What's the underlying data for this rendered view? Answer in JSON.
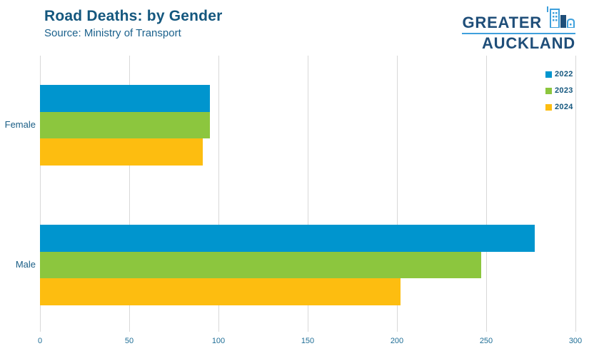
{
  "header": {
    "title": "Road Deaths: by Gender",
    "subtitle": "Source: Ministry of Transport"
  },
  "logo": {
    "line1": "GREATER",
    "line2": "AUCKLAND",
    "icon": "skyline-icon"
  },
  "colors": {
    "series_2022": "#0095CE",
    "series_2023": "#8CC63E",
    "series_2024": "#FDBD10",
    "title_text": "#14577E",
    "axis_text": "#1F6E96",
    "category_text": "#1A5E86",
    "gridline": "#D8D8D8",
    "logo_dark": "#1F4E79",
    "logo_light": "#3EA0DC"
  },
  "chart_data": {
    "type": "bar",
    "orientation": "horizontal",
    "title": "Road Deaths: by Gender",
    "subtitle": "Source: Ministry of Transport",
    "categories": [
      "Female",
      "Male"
    ],
    "series": [
      {
        "name": "2022",
        "color": "#0095CE",
        "values": [
          95,
          277
        ]
      },
      {
        "name": "2023",
        "color": "#8CC63E",
        "values": [
          95,
          247
        ]
      },
      {
        "name": "2024",
        "color": "#FDBD10",
        "values": [
          91,
          202
        ]
      }
    ],
    "xlabel": "",
    "ylabel": "",
    "xlim": [
      0,
      300
    ],
    "xticks": [
      0,
      50,
      100,
      150,
      200,
      250,
      300
    ],
    "grid": true,
    "legend_position": "top-right"
  }
}
